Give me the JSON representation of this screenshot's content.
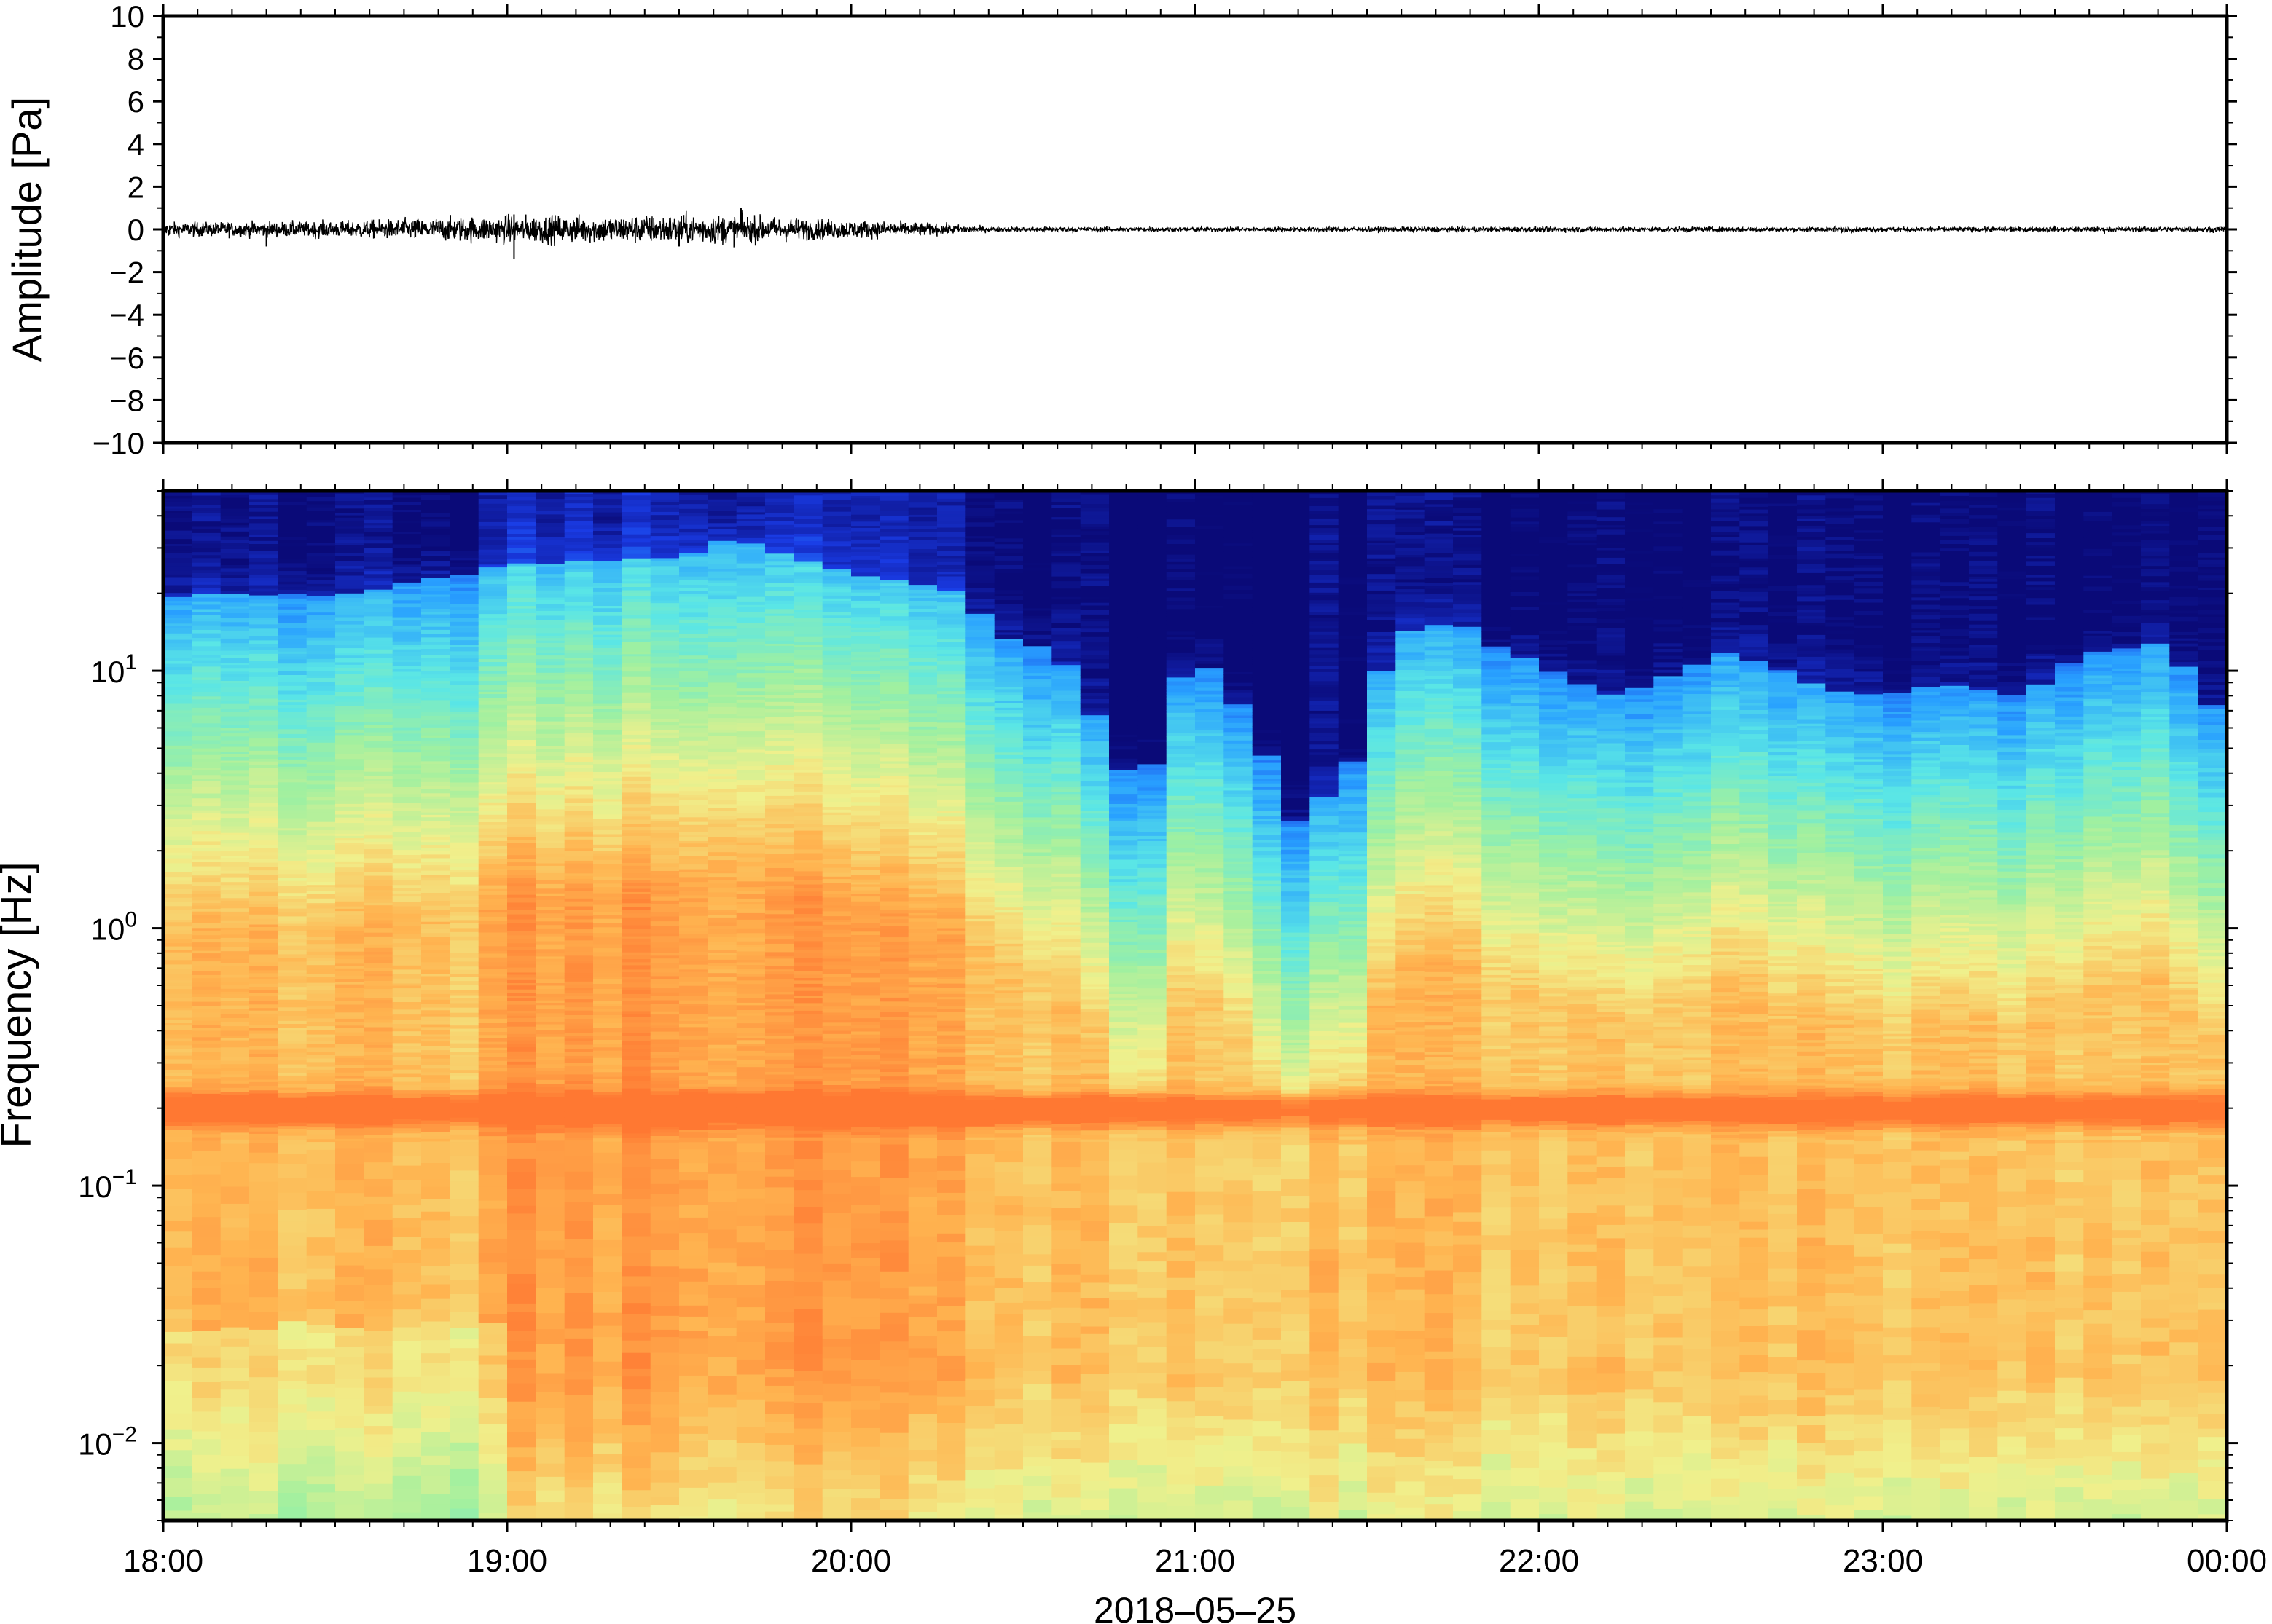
{
  "chart_data": [
    {
      "type": "line",
      "name": "waveform",
      "ylabel": "Amplitude [Pa]",
      "ylim": [
        -10,
        10
      ],
      "yticks": [
        10,
        8,
        6,
        4,
        2,
        0,
        -2,
        -4,
        -6,
        -8,
        -10
      ],
      "ytick_labels": [
        "10",
        "8",
        "6",
        "4",
        "2",
        "0",
        "−2",
        "−4",
        "−6",
        "−8",
        "−10"
      ],
      "xlim_hours": [
        18,
        24
      ],
      "envelope": {
        "hours": [
          18.0,
          18.5,
          19.0,
          19.3,
          19.6,
          19.9,
          20.2,
          20.4,
          21.0,
          22.0,
          23.0,
          24.0
        ],
        "amplitude": [
          0.3,
          0.35,
          0.6,
          0.6,
          0.65,
          0.45,
          0.3,
          0.12,
          0.1,
          0.12,
          0.1,
          0.12
        ]
      },
      "spikes": [
        {
          "hour": 18.3,
          "value": -0.8
        },
        {
          "hour": 19.02,
          "value": -1.4
        },
        {
          "hour": 19.02,
          "value": 0.7
        },
        {
          "hour": 19.68,
          "value": 1.0
        },
        {
          "hour": 19.5,
          "value": -0.8
        }
      ],
      "grid": false
    },
    {
      "type": "heatmap",
      "name": "spectrogram",
      "ylabel": "Frequency [Hz]",
      "xlabel": "2018–05–25",
      "y_scale": "log",
      "ylim": [
        0.005,
        50
      ],
      "yticks": [
        10,
        1,
        0.1,
        0.01
      ],
      "ytick_labels": [
        {
          "base": "10",
          "exp": "1"
        },
        {
          "base": "10",
          "exp": "0"
        },
        {
          "base": "10",
          "exp": "−1"
        },
        {
          "base": "10",
          "exp": "−2"
        }
      ],
      "xticks": [
        "18:00",
        "19:00",
        "20:00",
        "21:00",
        "22:00",
        "23:00",
        "00:00"
      ],
      "xtick_hours": [
        18,
        19,
        20,
        21,
        22,
        23,
        24
      ],
      "colormap": [
        "#0a0a78",
        "#1a3ce6",
        "#28a0ff",
        "#5ae6e6",
        "#a0f0a0",
        "#f0f08c",
        "#ffb450",
        "#ff7832"
      ],
      "upper_cutoff_hz": {
        "hours": [
          18.0,
          18.5,
          19.0,
          19.5,
          19.65,
          20.0,
          20.35,
          20.4,
          20.6,
          20.75,
          20.85,
          21.0,
          21.2,
          21.3,
          21.45,
          21.6,
          21.75,
          21.9,
          22.2,
          22.4,
          22.55,
          22.8,
          23.0,
          23.2,
          23.4,
          23.6,
          23.8,
          24.0
        ],
        "freq": [
          20,
          20,
          26,
          28,
          33,
          24,
          20,
          14,
          12,
          5,
          3,
          12,
          5,
          2.5,
          4,
          14,
          16,
          12,
          8,
          10,
          12,
          9,
          8,
          9,
          8,
          12,
          13,
          6
        ]
      },
      "grid": false,
      "legend": "none"
    }
  ]
}
